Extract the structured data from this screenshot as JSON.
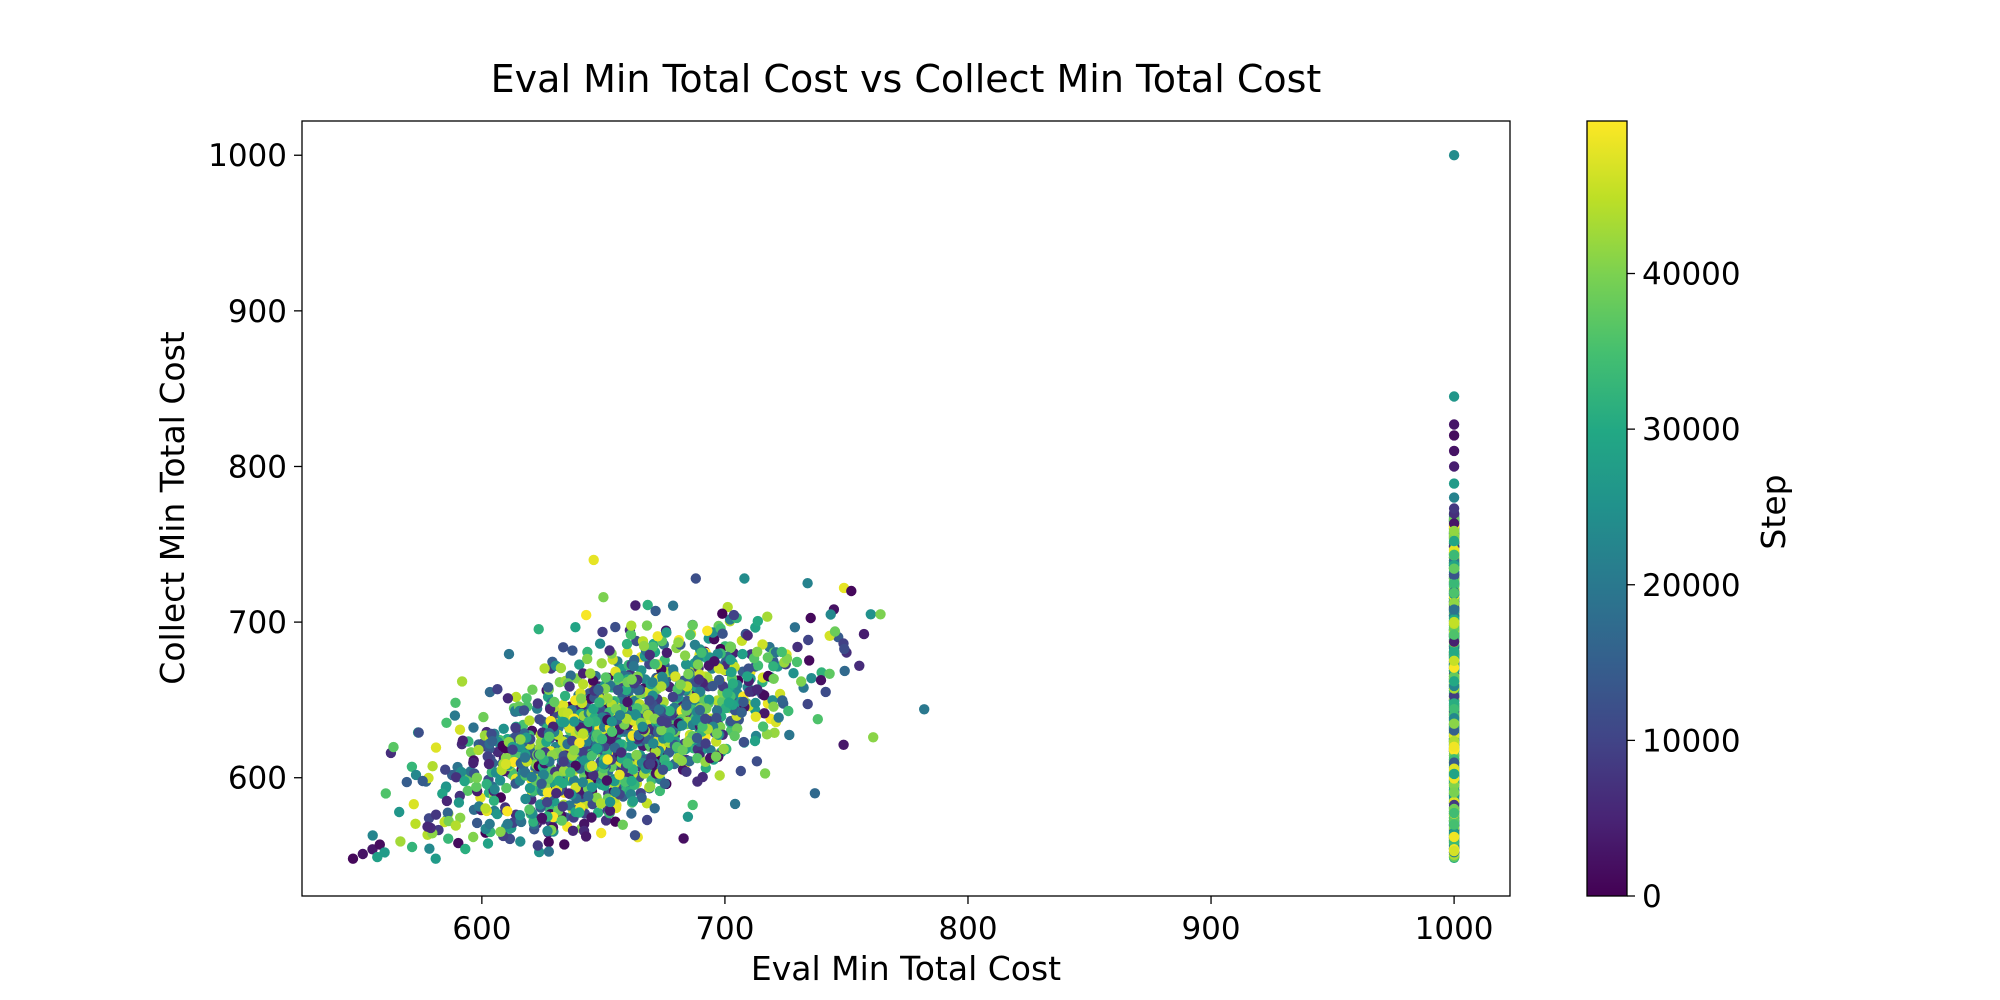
{
  "chart_data": {
    "type": "scatter",
    "title": "Eval Min Total Cost vs Collect Min Total Cost",
    "xlabel": "Eval Min Total Cost",
    "ylabel": "Collect Min Total Cost",
    "xlim": [
      526,
      1023
    ],
    "ylim": [
      524,
      1022
    ],
    "xticks": [
      600,
      700,
      800,
      900,
      1000
    ],
    "yticks": [
      600,
      700,
      800,
      900,
      1000
    ],
    "grid": false,
    "colorbar": {
      "label": "Step",
      "colormap": "viridis",
      "range": [
        0,
        49800
      ],
      "ticks": [
        0,
        10000,
        20000,
        30000,
        40000
      ]
    },
    "cluster": {
      "x_mean": 655,
      "x_sd": 36,
      "y_mean": 628,
      "y_sd": 34,
      "correlation": 0.62,
      "n_points": 1500,
      "step_range": [
        0,
        49800
      ]
    },
    "vertical_band": {
      "x": 1000,
      "y_min": 548,
      "y_max": 770,
      "n_points": 900,
      "step_range": [
        0,
        49800
      ]
    },
    "points": [
      {
        "x": 547,
        "y": 548,
        "step": 1000
      },
      {
        "x": 551,
        "y": 551,
        "step": 2500
      },
      {
        "x": 555,
        "y": 554,
        "step": 3000
      },
      {
        "x": 558,
        "y": 557,
        "step": 1500
      },
      {
        "x": 557,
        "y": 549,
        "step": 28000
      },
      {
        "x": 560,
        "y": 552,
        "step": 27000
      },
      {
        "x": 566,
        "y": 578,
        "step": 26000
      },
      {
        "x": 572,
        "y": 583,
        "step": 47000
      },
      {
        "x": 581,
        "y": 548,
        "step": 27000
      },
      {
        "x": 574,
        "y": 629,
        "step": 12000
      },
      {
        "x": 646,
        "y": 740,
        "step": 48000
      },
      {
        "x": 650,
        "y": 716,
        "step": 40000
      },
      {
        "x": 688,
        "y": 728,
        "step": 12000
      },
      {
        "x": 708,
        "y": 728,
        "step": 24000
      },
      {
        "x": 734,
        "y": 725,
        "step": 22000
      },
      {
        "x": 749,
        "y": 722,
        "step": 48000
      },
      {
        "x": 752,
        "y": 720,
        "step": 1000
      },
      {
        "x": 760,
        "y": 705,
        "step": 25000
      },
      {
        "x": 764,
        "y": 705,
        "step": 40000
      },
      {
        "x": 761,
        "y": 626,
        "step": 41000
      },
      {
        "x": 782,
        "y": 644,
        "step": 20000
      },
      {
        "x": 683,
        "y": 561,
        "step": 2000
      },
      {
        "x": 663,
        "y": 563,
        "step": 12000
      },
      {
        "x": 737,
        "y": 590,
        "step": 17000
      },
      {
        "x": 1000,
        "y": 1000,
        "step": 24000
      },
      {
        "x": 1000,
        "y": 845,
        "step": 26000
      },
      {
        "x": 1000,
        "y": 827,
        "step": 3000
      },
      {
        "x": 1000,
        "y": 820,
        "step": 1500
      },
      {
        "x": 1000,
        "y": 810,
        "step": 2500
      },
      {
        "x": 1000,
        "y": 800,
        "step": 4000
      },
      {
        "x": 1000,
        "y": 789,
        "step": 27000
      },
      {
        "x": 1000,
        "y": 780,
        "step": 22000
      },
      {
        "x": 1000,
        "y": 773,
        "step": 8000
      }
    ]
  }
}
